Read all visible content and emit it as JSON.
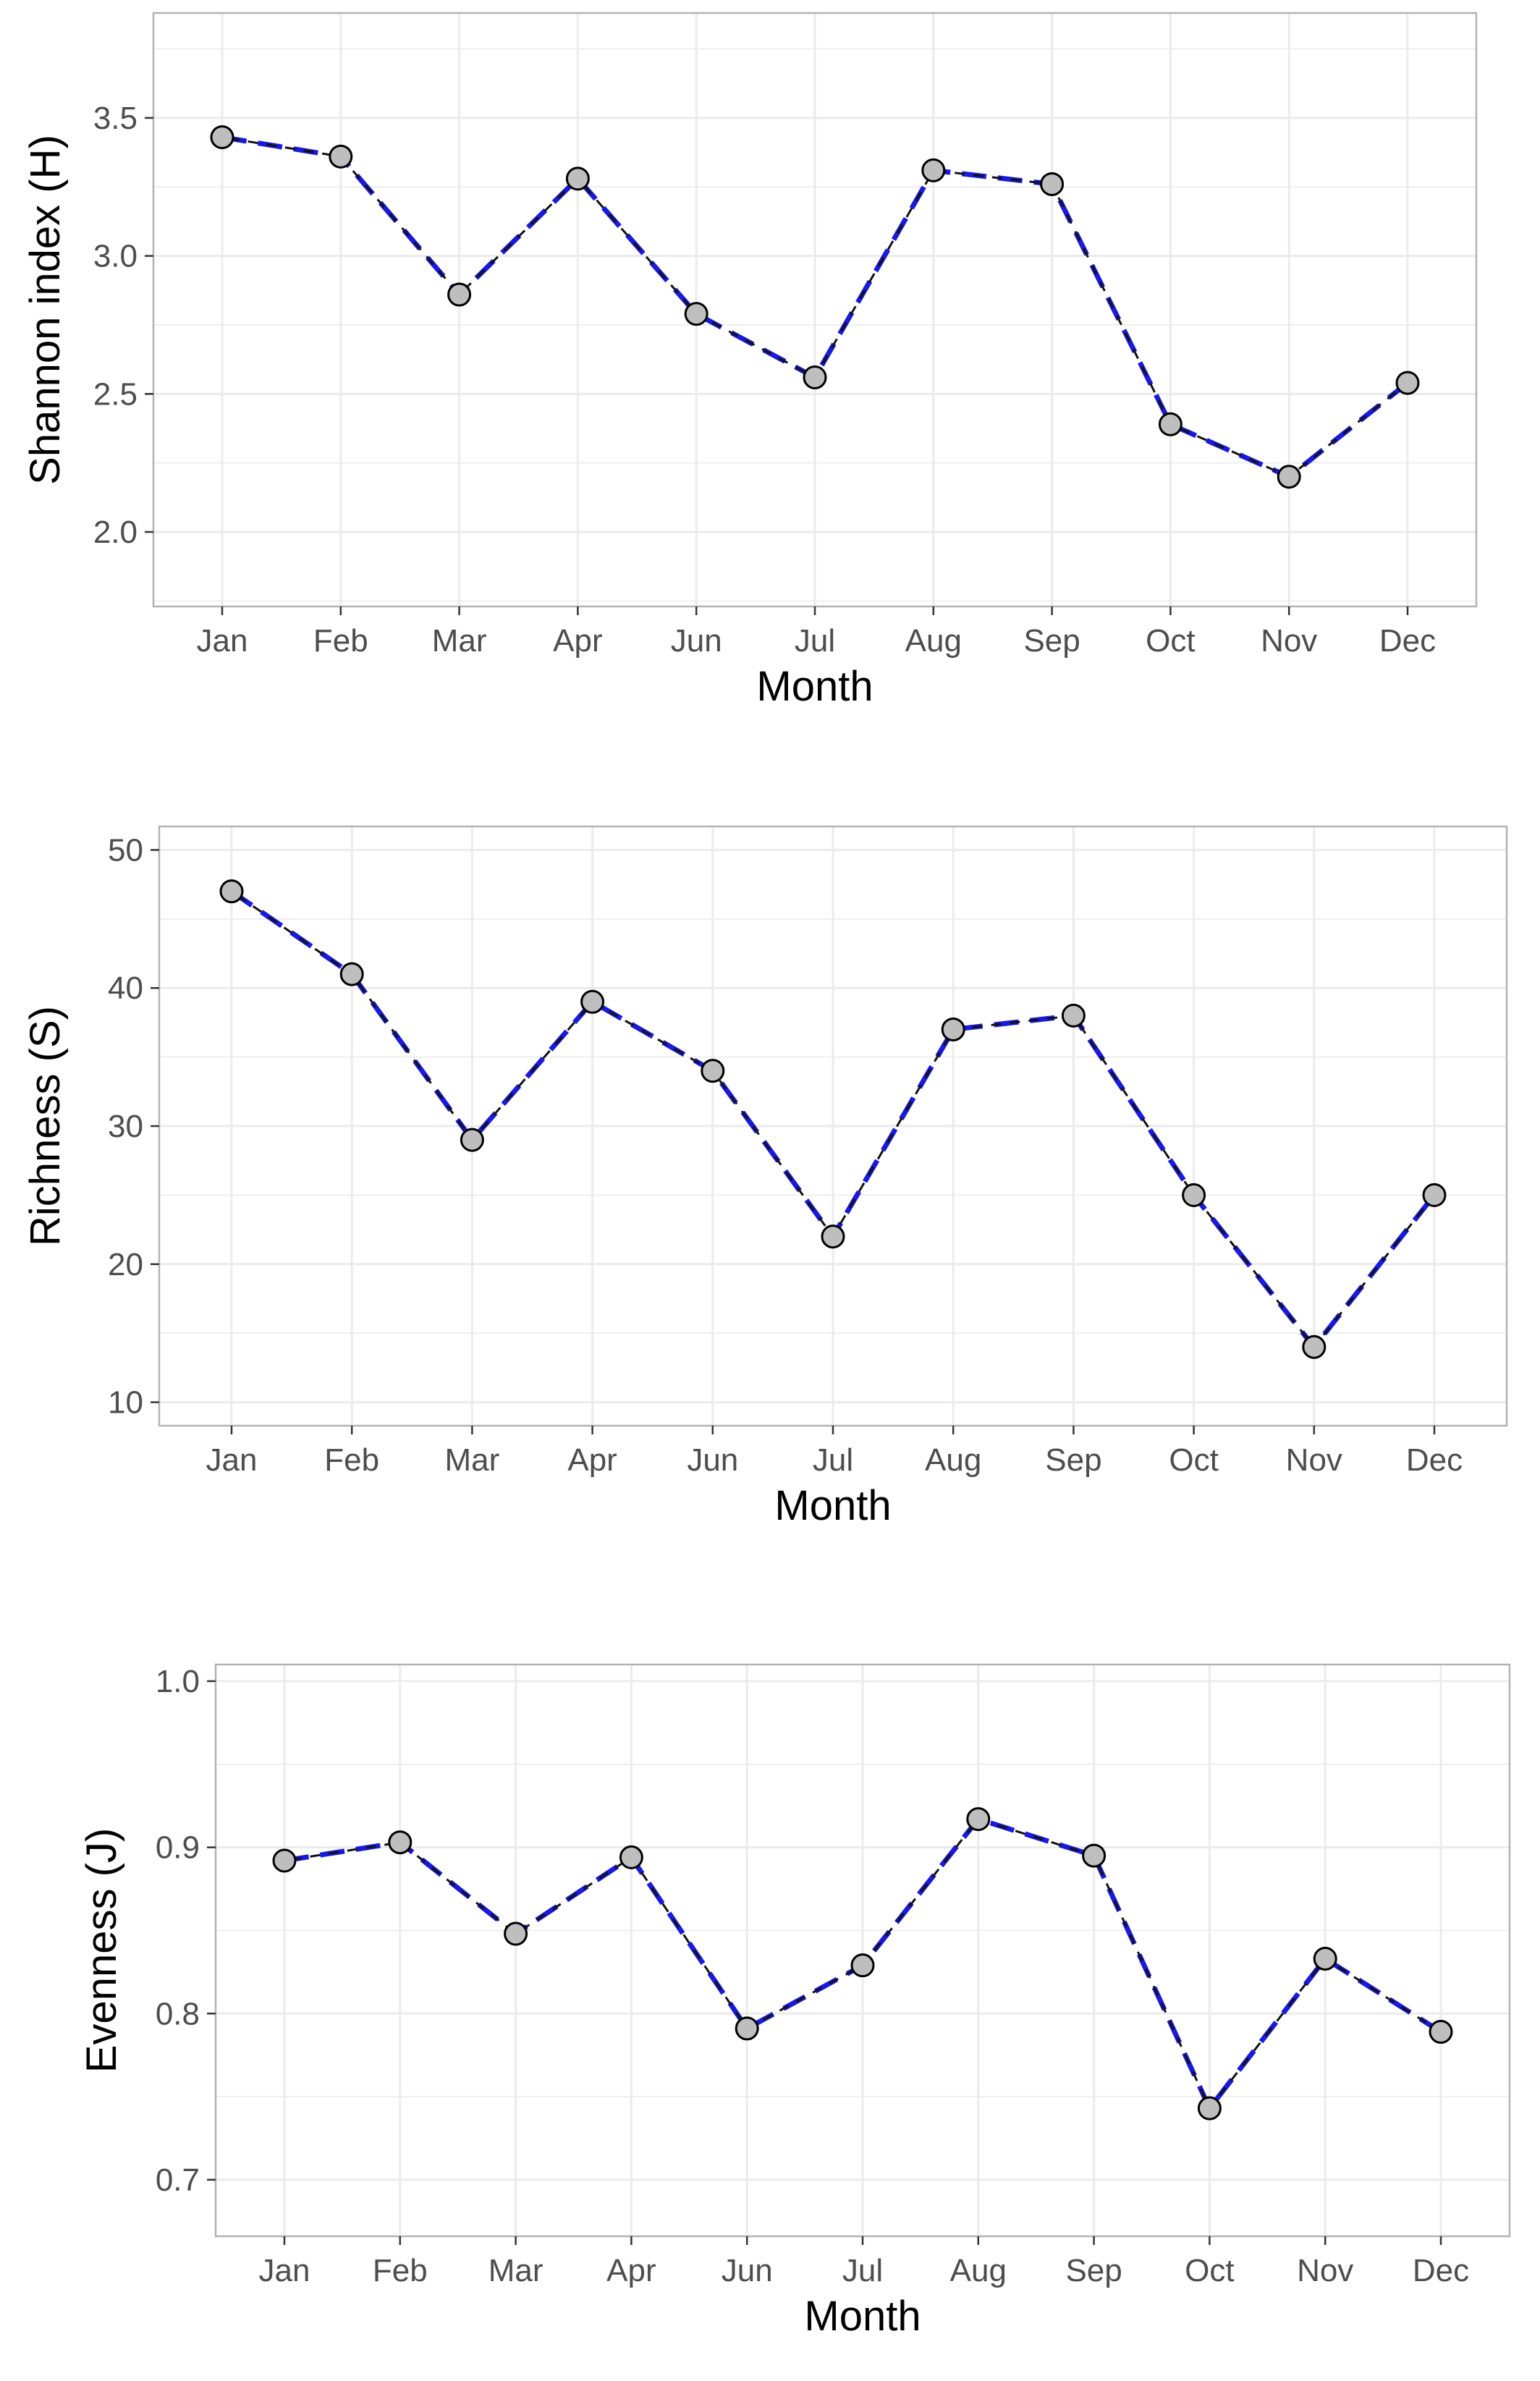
{
  "style": {
    "line_color": "#1a1adb",
    "marker_fill": "#bebebe",
    "marker_edge": "#000000",
    "grid_color": "#ebebeb",
    "panel_border": "#b3b3b3"
  },
  "chart_data": [
    {
      "type": "line",
      "categories": [
        "Jan",
        "Feb",
        "Mar",
        "Apr",
        "Jun",
        "Jul",
        "Aug",
        "Sep",
        "Oct",
        "Nov",
        "Dec"
      ],
      "series": [
        {
          "values": [
            3.43,
            3.36,
            2.86,
            3.28,
            2.79,
            2.56,
            3.31,
            3.26,
            2.39,
            2.2,
            2.54
          ]
        }
      ],
      "xlabel": "Month",
      "ylabel": "Shannon index (H)",
      "ylim": [
        1.73,
        3.88
      ],
      "yticks": [
        2.0,
        2.5,
        3.0,
        3.5
      ],
      "ytick_labels": [
        "2.0",
        "2.5",
        "3.0",
        "3.5"
      ],
      "grid": true
    },
    {
      "type": "line",
      "categories": [
        "Jan",
        "Feb",
        "Mar",
        "Apr",
        "Jun",
        "Jul",
        "Aug",
        "Sep",
        "Oct",
        "Nov",
        "Dec"
      ],
      "series": [
        {
          "values": [
            47,
            41,
            29,
            39,
            34,
            22,
            37,
            38,
            25,
            14,
            25
          ]
        }
      ],
      "xlabel": "Month",
      "ylabel": "Richness (S)",
      "ylim": [
        8.3,
        51.7
      ],
      "yticks": [
        10,
        20,
        30,
        40,
        50
      ],
      "ytick_labels": [
        "10",
        "20",
        "30",
        "40",
        "50"
      ],
      "grid": true
    },
    {
      "type": "line",
      "categories": [
        "Jan",
        "Feb",
        "Mar",
        "Apr",
        "Jun",
        "Jul",
        "Aug",
        "Sep",
        "Oct",
        "Nov",
        "Dec"
      ],
      "series": [
        {
          "values": [
            0.892,
            0.903,
            0.848,
            0.894,
            0.791,
            0.829,
            0.917,
            0.895,
            0.743,
            0.833,
            0.789
          ]
        }
      ],
      "xlabel": "Month",
      "ylabel": "Evenness (J)",
      "ylim": [
        0.666,
        1.01
      ],
      "yticks": [
        0.7,
        0.8,
        0.9,
        1.0
      ],
      "ytick_labels": [
        "0.7",
        "0.8",
        "0.9",
        "1.0"
      ],
      "grid": true
    }
  ]
}
